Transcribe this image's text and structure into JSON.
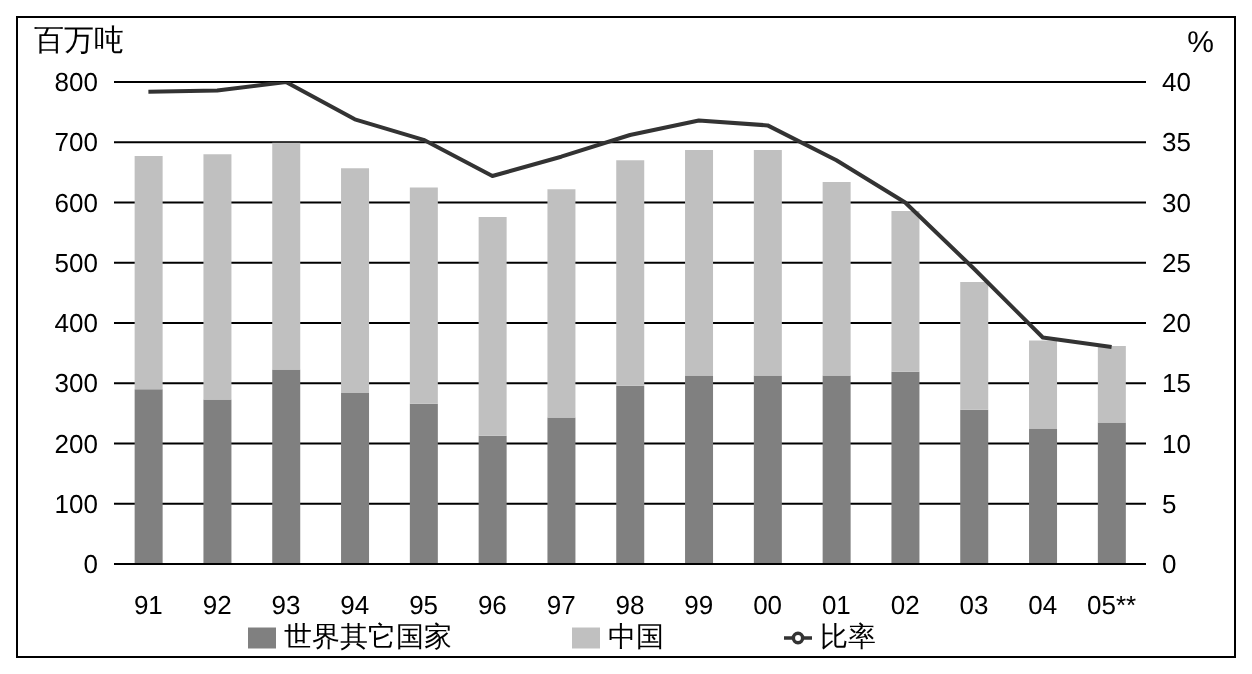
{
  "chart_data": {
    "type": "bar",
    "stacked": true,
    "categories": [
      "91",
      "92",
      "93",
      "94",
      "95",
      "96",
      "97",
      "98",
      "99",
      "00",
      "01",
      "02",
      "03",
      "04",
      "05**"
    ],
    "ylabel": "百万吨",
    "y2label": "%",
    "series": [
      {
        "name": "世界其它国家",
        "color": "#808080",
        "values": [
          290,
          273,
          323,
          284,
          266,
          213,
          243,
          296,
          313,
          313,
          313,
          319,
          256,
          225,
          235
        ]
      },
      {
        "name": "中国",
        "color": "#c0c0c0",
        "values": [
          387,
          407,
          376,
          373,
          359,
          363,
          379,
          374,
          374,
          374,
          321,
          267,
          212,
          146,
          127
        ]
      },
      {
        "name": "比率",
        "type": "line",
        "axis": "y2",
        "color": "#333333",
        "values": [
          39.2,
          39.3,
          40,
          36.9,
          35.2,
          32.2,
          33.8,
          35.6,
          36.8,
          36.4,
          33.5,
          30,
          24.5,
          18.8,
          18
        ]
      }
    ],
    "ylim": [
      0,
      800
    ],
    "yticks": [
      0,
      100,
      200,
      300,
      400,
      500,
      600,
      700,
      800
    ],
    "y2lim": [
      0,
      40
    ],
    "y2ticks": [
      0,
      5,
      10,
      15,
      20,
      25,
      30,
      35,
      40
    ],
    "grid": "y",
    "legend": "bottom",
    "marker": "none"
  }
}
